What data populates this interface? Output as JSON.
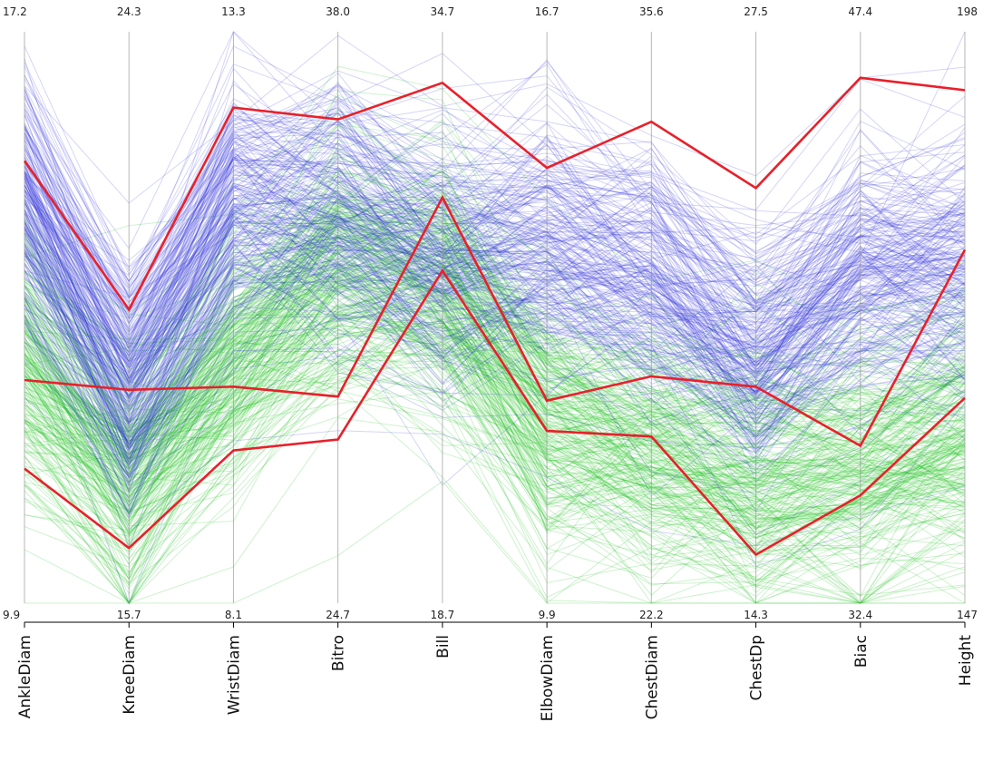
{
  "chart_data": {
    "type": "parallel-coordinates",
    "axes": [
      {
        "name": "AnkleDiam",
        "min": "9.9",
        "max": "17.2",
        "min_value": 9.9,
        "max_value": 17.2
      },
      {
        "name": "KneeDiam",
        "min": "15.7",
        "max": "24.3",
        "min_value": 15.7,
        "max_value": 24.3
      },
      {
        "name": "WristDiam",
        "min": "8.1",
        "max": "13.3",
        "min_value": 8.1,
        "max_value": 13.3
      },
      {
        "name": "Bitro",
        "min": "24.7",
        "max": "38.0",
        "min_value": 24.7,
        "max_value": 38.0
      },
      {
        "name": "Bill",
        "min": "18.7",
        "max": "34.7",
        "min_value": 18.7,
        "max_value": 34.7
      },
      {
        "name": "ElbowDiam",
        "min": "9.9",
        "max": "16.7",
        "min_value": 9.9,
        "max_value": 16.7
      },
      {
        "name": "ChestDiam",
        "min": "22.2",
        "max": "35.6",
        "min_value": 22.2,
        "max_value": 35.6
      },
      {
        "name": "ChestDp",
        "min": "14.3",
        "max": "27.5",
        "min_value": 14.3,
        "max_value": 27.5
      },
      {
        "name": "Biac",
        "min": "32.4",
        "max": "47.4",
        "min_value": 32.4,
        "max_value": 47.4
      },
      {
        "name": "Height",
        "min": "147",
        "max": "198",
        "min_value": 147,
        "max_value": 198
      }
    ],
    "group_colors": {
      "group_a": "#2b2bdc",
      "group_b": "#22c322",
      "highlight": "#e8202a"
    },
    "group_profiles": {
      "group_a": [
        0.72,
        0.4,
        0.7,
        0.7,
        0.62,
        0.65,
        0.58,
        0.45,
        0.6,
        0.6
      ],
      "group_b": [
        0.42,
        0.22,
        0.42,
        0.58,
        0.55,
        0.32,
        0.26,
        0.22,
        0.24,
        0.3
      ]
    },
    "highlighted_lines": [
      [
        15.55,
        20.12,
        12.61,
        35.96,
        33.27,
        15.08,
        33.49,
        23.89,
        46.19,
        192.79
      ],
      [
        12.75,
        18.91,
        10.07,
        29.51,
        30.06,
        12.31,
        27.52,
        19.3,
        36.53,
        178.55
      ],
      [
        11.62,
        16.53,
        9.49,
        28.51,
        28.01,
        11.95,
        26.11,
        15.42,
        35.23,
        165.31
      ]
    ],
    "grid": false,
    "legend": "none"
  }
}
